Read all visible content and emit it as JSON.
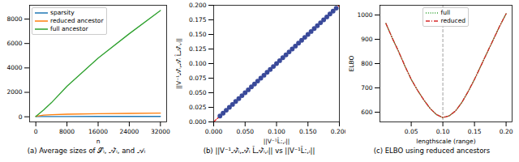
{
  "chart_data": [
    {
      "type": "line",
      "title": "(a) Average sizes of 𝒮ᵢ, 𝒜̃ᵢ, and 𝒜ᵢ",
      "x_label": "n",
      "x": [
        0,
        1000,
        2000,
        4000,
        8000,
        16000,
        24000,
        32000
      ],
      "series": [
        {
          "name": "sparsity",
          "color": "#1f77b4",
          "line_style": "solid",
          "values": [
            20,
            22,
            24,
            25,
            26,
            27,
            27,
            28
          ]
        },
        {
          "name": "reduced ancestor",
          "color": "#ff7f0e",
          "line_style": "solid",
          "values": [
            30,
            90,
            130,
            170,
            210,
            250,
            275,
            300
          ]
        },
        {
          "name": "full ancestor",
          "color": "#2ca02c",
          "line_style": "solid",
          "values": [
            20,
            290,
            560,
            1150,
            2500,
            4800,
            6800,
            8700
          ]
        }
      ],
      "xlim": [
        -1600,
        33600
      ],
      "ylim": [
        -420,
        9130
      ],
      "xticks": [
        0,
        8000,
        16000,
        24000,
        32000
      ],
      "yticks": [
        0,
        2000,
        4000,
        6000,
        8000
      ],
      "legend": "upper left"
    },
    {
      "type": "scatter",
      "title": "(b) ||V⁻¹𝒜̃ᵢ,𝒜̃ᵢ L̂𝒜̃ᵢ,ᵢ|| vs ||V⁻¹L̂:,ᵢ||",
      "x_label": "||V⁻¹L̂:,ᵢ||",
      "y_label": "||V⁻¹𝒜̃ᵢ,𝒜̃ᵢ L̂𝒜̃ᵢ,ᵢ||",
      "series": [
        {
          "type": "line",
          "color": "#e41a1c",
          "line_style": "dashed",
          "x": [
            0,
            0.2
          ],
          "values": [
            0,
            0.2
          ]
        },
        {
          "type": "scatter",
          "color": "#3a4a9a",
          "marker": "circle",
          "x": [
            0.01,
            0.015,
            0.02,
            0.025,
            0.03,
            0.035,
            0.04,
            0.045,
            0.05,
            0.055,
            0.06,
            0.065,
            0.07,
            0.075,
            0.08,
            0.085,
            0.09,
            0.095,
            0.1,
            0.105,
            0.11,
            0.115,
            0.12,
            0.125,
            0.13,
            0.135,
            0.14,
            0.145,
            0.15,
            0.155,
            0.16,
            0.165,
            0.17,
            0.175,
            0.18,
            0.185,
            0.19,
            0.195
          ],
          "values": [
            0.01,
            0.015,
            0.02,
            0.025,
            0.03,
            0.035,
            0.04,
            0.045,
            0.05,
            0.055,
            0.06,
            0.065,
            0.07,
            0.075,
            0.08,
            0.085,
            0.09,
            0.095,
            0.1,
            0.105,
            0.11,
            0.115,
            0.12,
            0.125,
            0.13,
            0.135,
            0.14,
            0.145,
            0.15,
            0.155,
            0.16,
            0.165,
            0.17,
            0.175,
            0.18,
            0.185,
            0.19,
            0.195
          ]
        }
      ],
      "xlim": [
        0,
        0.2
      ],
      "ylim": [
        0,
        0.2
      ],
      "xticks": [
        {
          "value": 0,
          "label": "0.000"
        },
        {
          "value": 0.05,
          "label": "0.050"
        },
        {
          "value": 0.1,
          "label": "0.100"
        },
        {
          "value": 0.15,
          "label": "0.150"
        },
        {
          "value": 0.2,
          "label": "0.200"
        }
      ],
      "yticks": [
        {
          "value": 0,
          "label": "0.000"
        },
        {
          "value": 0.025,
          "label": "0.025"
        },
        {
          "value": 0.05,
          "label": "0.050"
        },
        {
          "value": 0.075,
          "label": "0.075"
        },
        {
          "value": 0.1,
          "label": "0.100"
        },
        {
          "value": 0.125,
          "label": "0.125"
        },
        {
          "value": 0.15,
          "label": "0.150"
        },
        {
          "value": 0.175,
          "label": "0.175"
        },
        {
          "value": 0.2,
          "label": "0.200"
        }
      ]
    },
    {
      "type": "line",
      "title": "(c) ELBO using reduced ancestors",
      "x_label": "lengthscale (range)",
      "y_label": "ELBO",
      "x": [
        0.01,
        0.02,
        0.03,
        0.04,
        0.05,
        0.06,
        0.07,
        0.08,
        0.09,
        0.1,
        0.11,
        0.12,
        0.13,
        0.14,
        0.15,
        0.16,
        0.17,
        0.18,
        0.19,
        0.2
      ],
      "series": [
        {
          "name": "full",
          "color": "#2ca02c",
          "line_style": "dotted",
          "values": [
            965,
            905,
            850,
            790,
            735,
            690,
            650,
            615,
            590,
            578,
            585,
            605,
            640,
            685,
            735,
            790,
            845,
            900,
            955,
            1005
          ]
        },
        {
          "name": "reduced",
          "color": "#d62728",
          "line_style": "dashdot",
          "values": [
            965,
            905,
            850,
            790,
            735,
            690,
            650,
            615,
            590,
            578,
            585,
            605,
            640,
            685,
            735,
            790,
            845,
            900,
            955,
            1005
          ]
        }
      ],
      "vline": {
        "value": 0.1,
        "color": "#888888",
        "line_style": "dashed"
      },
      "xlim": [
        0.0005,
        0.2095
      ],
      "ylim": [
        560,
        1040
      ],
      "xticks": [
        {
          "value": 0.05,
          "label": "0.05"
        },
        {
          "value": 0.1,
          "label": "0.10"
        },
        {
          "value": 0.15,
          "label": "0.15"
        },
        {
          "value": 0.2,
          "label": "0.20"
        }
      ],
      "yticks": [
        600,
        700,
        800,
        900,
        1000
      ],
      "legend": "upper center"
    }
  ]
}
